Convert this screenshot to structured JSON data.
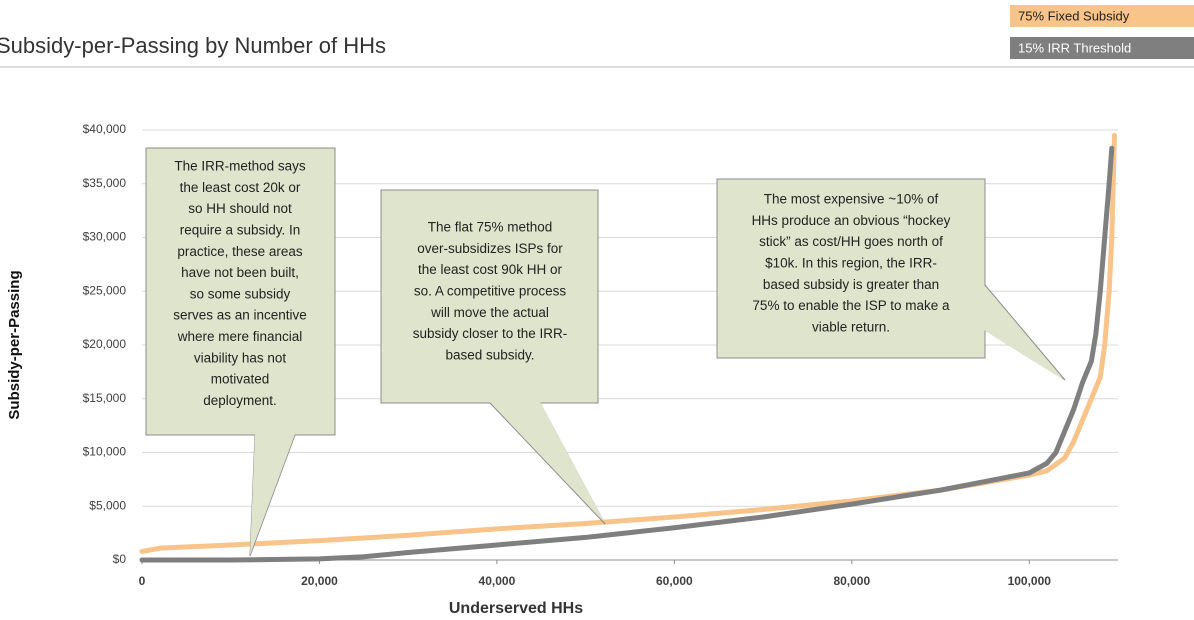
{
  "chart_data": {
    "type": "line",
    "title": "Subsidy-per-Passing by Number of HHs",
    "xlabel": "Underserved HHs",
    "ylabel": "Subsidy-per-Passing",
    "xlim": [
      0,
      110000
    ],
    "ylim": [
      0,
      40000
    ],
    "xticks": [
      0,
      {
        "value": 20000,
        "label": "20,000"
      },
      {
        "value": 40000,
        "label": "40,000"
      },
      {
        "value": 60000,
        "label": "60,000"
      },
      {
        "value": 80000,
        "label": "80,000"
      },
      {
        "value": 100000,
        "label": "100,000"
      }
    ],
    "yticks": [
      {
        "value": 0,
        "label": "$0"
      },
      {
        "value": 5000,
        "label": "$5,000"
      },
      {
        "value": 10000,
        "label": "$10,000"
      },
      {
        "value": 15000,
        "label": "$15,000"
      },
      {
        "value": 20000,
        "label": "$20,000"
      },
      {
        "value": 25000,
        "label": "$25,000"
      },
      {
        "value": 30000,
        "label": "$30,000"
      },
      {
        "value": 35000,
        "label": "$35,000"
      },
      {
        "value": 40000,
        "label": "$40,000"
      }
    ],
    "grid": true,
    "legend": "top-right",
    "series": [
      {
        "name": "75% Fixed Subsidy",
        "color": "#f8c48a",
        "x": [
          0,
          2000,
          10000,
          20000,
          30000,
          40000,
          50000,
          60000,
          70000,
          80000,
          90000,
          95000,
          100000,
          102000,
          104000,
          105000,
          106000,
          107000,
          108000,
          108500,
          109000,
          109300,
          109600
        ],
        "values": [
          800,
          1100,
          1400,
          1800,
          2300,
          2900,
          3400,
          4000,
          4700,
          5500,
          6500,
          7200,
          7900,
          8300,
          9500,
          11000,
          13000,
          15000,
          17000,
          20000,
          25000,
          30000,
          39500
        ]
      },
      {
        "name": "15% IRR Threshold",
        "color": "#7f7f7f",
        "x": [
          0,
          10000,
          20000,
          25000,
          30000,
          40000,
          50000,
          60000,
          70000,
          80000,
          90000,
          95000,
          100000,
          102000,
          103000,
          104000,
          105000,
          106000,
          107000,
          107500,
          108000,
          108500,
          109000,
          109300
        ],
        "values": [
          0,
          0,
          100,
          300,
          700,
          1400,
          2100,
          3000,
          4000,
          5200,
          6500,
          7300,
          8100,
          9000,
          10000,
          12000,
          14000,
          16500,
          18500,
          21000,
          25000,
          30000,
          35000,
          38300
        ]
      }
    ],
    "annotations": [
      {
        "lines": [
          "The IRR-method says",
          "the least cost 20k or",
          "so HH should not",
          "require a subsidy. In",
          "practice, these areas",
          "have not been built,",
          "so some subsidy",
          "serves as an incentive",
          "where mere financial",
          "viability has not",
          "motivated",
          "deployment."
        ]
      },
      {
        "lines": [
          "The flat 75% method",
          "over-subsidizes ISPs for",
          "the least cost 90k HH or",
          "so. A competitive process",
          "will move the actual",
          "subsidy closer to the IRR-",
          "based subsidy."
        ]
      },
      {
        "lines": [
          "The most expensive ~10% of",
          "HHs produce an obvious “hockey",
          "stick” as cost/HH goes north of",
          "$10k. In this region, the IRR-",
          "based subsidy is greater than",
          "75% to enable the ISP to make a",
          "viable return."
        ]
      }
    ]
  }
}
